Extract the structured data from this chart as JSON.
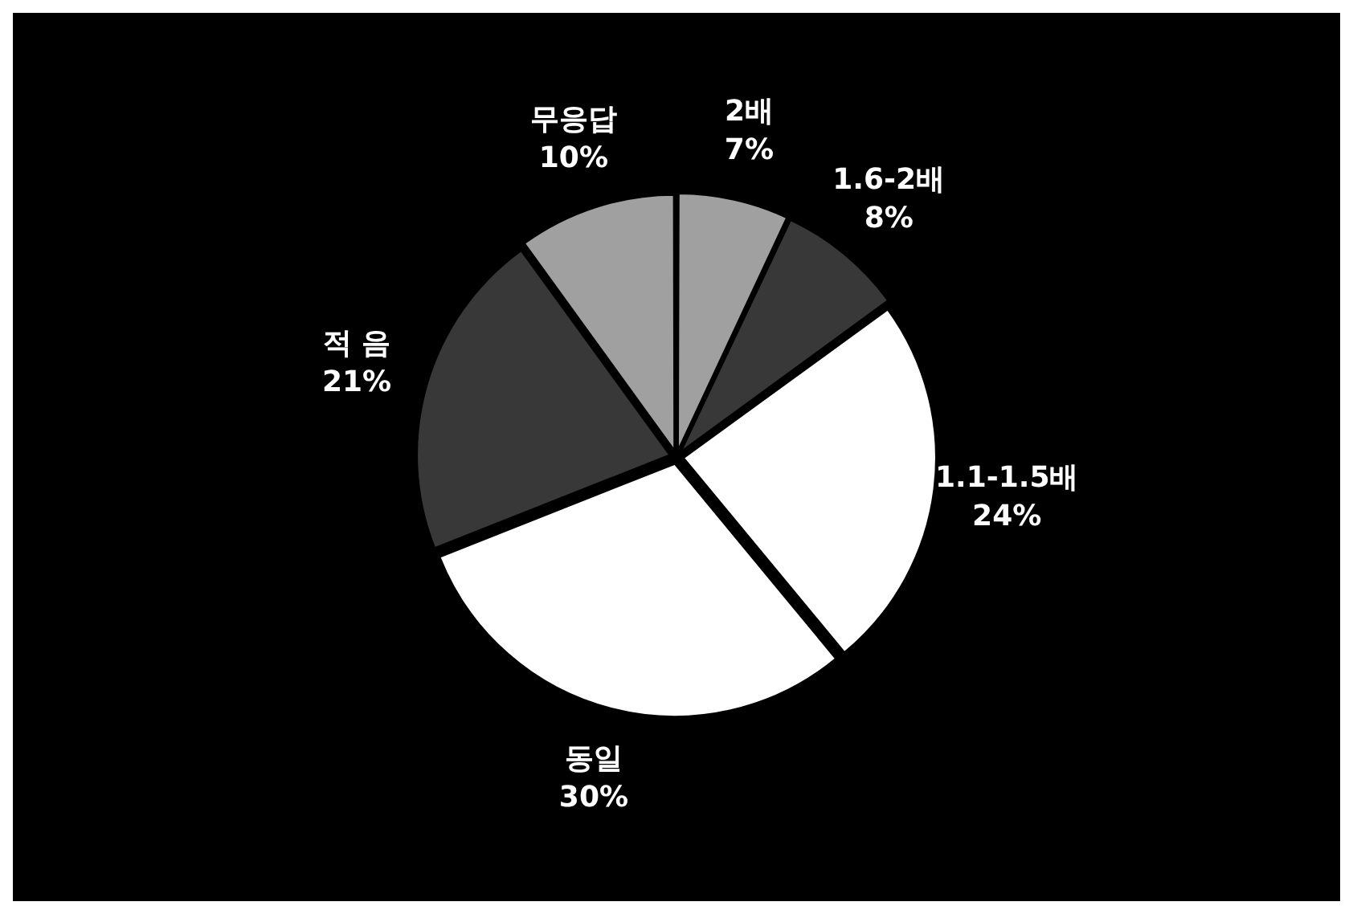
{
  "chart_data": {
    "type": "pie",
    "categories": [
      "2배",
      "1.6-2배",
      "1.1-1.5배",
      "동일",
      "적 음",
      "무응답"
    ],
    "values": [
      7,
      8,
      24,
      30,
      21,
      10
    ],
    "colors": [
      "#a0a0a0",
      "#383838",
      "#ffffff",
      "#ffffff",
      "#383838",
      "#a0a0a0"
    ],
    "value_labels": [
      "7%",
      "8%",
      "24%",
      "30%",
      "21%",
      "10%"
    ],
    "legend": false
  }
}
